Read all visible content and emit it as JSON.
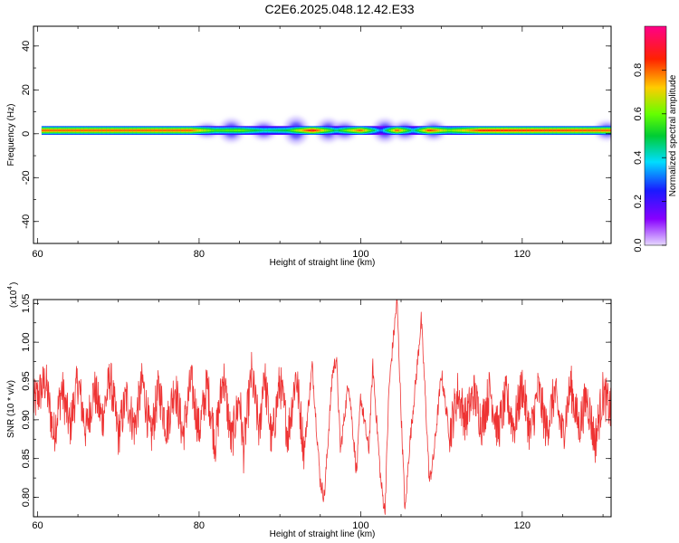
{
  "title": "C2E6.2025.048.12.42.E33",
  "chart_data": [
    {
      "type": "heatmap",
      "name": "spectrogram",
      "xlabel": "Height of straight line (km)",
      "ylabel": "Frequency (Hz)",
      "xlim": [
        59.5,
        131
      ],
      "ylim": [
        -50,
        49
      ],
      "xticks": [
        "60",
        "80",
        "100",
        "120"
      ],
      "yticks": [
        "40",
        "20",
        "0",
        "-20",
        "-40"
      ],
      "colorbar": {
        "label": "Normalized spectral amplitude",
        "range": [
          0,
          1
        ],
        "ticks": [
          "0.0",
          "0.2",
          "0.4",
          "0.6",
          "0.8"
        ],
        "colors": [
          "#e6d9ff",
          "#8800ff",
          "#1a1aff",
          "#00ddff",
          "#00cc33",
          "#66ff00",
          "#ffcc00",
          "#ff2200",
          "#ff0088"
        ]
      },
      "band": {
        "center_freq_hz": 1.5,
        "half_width_hz": 2,
        "amplitude_by_height": [
          {
            "x": 60.5,
            "amp": 0.8
          },
          {
            "x": 79,
            "amp": 0.8
          },
          {
            "x": 82,
            "amp": 0.55
          },
          {
            "x": 85,
            "amp": 0.6
          },
          {
            "x": 88,
            "amp": 0.45
          },
          {
            "x": 91,
            "amp": 0.5
          },
          {
            "x": 94,
            "amp": 0.9
          },
          {
            "x": 97,
            "amp": 0.45
          },
          {
            "x": 100,
            "amp": 0.82
          },
          {
            "x": 102.5,
            "amp": 0.3
          },
          {
            "x": 104.5,
            "amp": 0.82
          },
          {
            "x": 106.5,
            "amp": 0.4
          },
          {
            "x": 108.5,
            "amp": 0.85
          },
          {
            "x": 111,
            "amp": 0.6
          },
          {
            "x": 115,
            "amp": 0.85
          },
          {
            "x": 131,
            "amp": 0.8
          }
        ],
        "spread_regions": [
          {
            "x": 81,
            "spread_hz": 3
          },
          {
            "x": 84,
            "spread_hz": 5
          },
          {
            "x": 88,
            "spread_hz": 4
          },
          {
            "x": 92,
            "spread_hz": 6
          },
          {
            "x": 96,
            "spread_hz": 5
          },
          {
            "x": 98,
            "spread_hz": 4
          },
          {
            "x": 103,
            "spread_hz": 5
          },
          {
            "x": 105.5,
            "spread_hz": 4
          },
          {
            "x": 109,
            "spread_hz": 4
          },
          {
            "x": 130.5,
            "spread_hz": 4
          }
        ]
      }
    },
    {
      "type": "line",
      "name": "snr",
      "xlabel": "Height of straight line (km)",
      "ylabel": "SNR (10 * v/v)",
      "scale_label": "(x10",
      "scale_exponent": "4",
      "xlim": [
        59.5,
        131
      ],
      "ylim": [
        0.775,
        1.055
      ],
      "xticks": [
        "60",
        "80",
        "100",
        "120"
      ],
      "yticks": [
        "0.80",
        "0.85",
        "0.90",
        "0.95",
        "1.00",
        "1.05"
      ],
      "color": "#ee3333",
      "series": [
        {
          "values": [
            {
              "x": 59.5,
              "y": 0.92
            },
            {
              "x": 61,
              "y": 0.95
            },
            {
              "x": 62,
              "y": 0.88
            },
            {
              "x": 63,
              "y": 0.94
            },
            {
              "x": 64,
              "y": 0.89
            },
            {
              "x": 65,
              "y": 0.95
            },
            {
              "x": 66,
              "y": 0.885
            },
            {
              "x": 67,
              "y": 0.94
            },
            {
              "x": 68,
              "y": 0.9
            },
            {
              "x": 69,
              "y": 0.955
            },
            {
              "x": 70,
              "y": 0.88
            },
            {
              "x": 71,
              "y": 0.93
            },
            {
              "x": 72,
              "y": 0.89
            },
            {
              "x": 73,
              "y": 0.95
            },
            {
              "x": 74,
              "y": 0.875
            },
            {
              "x": 75,
              "y": 0.94
            },
            {
              "x": 76,
              "y": 0.89
            },
            {
              "x": 77,
              "y": 0.945
            },
            {
              "x": 78,
              "y": 0.88
            },
            {
              "x": 79,
              "y": 0.95
            },
            {
              "x": 80,
              "y": 0.885
            },
            {
              "x": 81,
              "y": 0.945
            },
            {
              "x": 82,
              "y": 0.87
            },
            {
              "x": 83,
              "y": 0.96
            },
            {
              "x": 84,
              "y": 0.87
            },
            {
              "x": 85,
              "y": 0.93
            },
            {
              "x": 85.5,
              "y": 0.86
            },
            {
              "x": 86.5,
              "y": 0.96
            },
            {
              "x": 87.5,
              "y": 0.88
            },
            {
              "x": 88,
              "y": 0.965
            },
            {
              "x": 89,
              "y": 0.87
            },
            {
              "x": 90,
              "y": 0.95
            },
            {
              "x": 91,
              "y": 0.88
            },
            {
              "x": 92,
              "y": 0.96
            },
            {
              "x": 93,
              "y": 0.86
            },
            {
              "x": 94,
              "y": 0.97
            },
            {
              "x": 95,
              "y": 0.82
            },
            {
              "x": 95.5,
              "y": 0.8
            },
            {
              "x": 96.5,
              "y": 0.96
            },
            {
              "x": 97,
              "y": 0.98
            },
            {
              "x": 97.5,
              "y": 0.86
            },
            {
              "x": 98.5,
              "y": 0.95
            },
            {
              "x": 99.5,
              "y": 0.83
            },
            {
              "x": 100,
              "y": 0.93
            },
            {
              "x": 101,
              "y": 0.86
            },
            {
              "x": 101.5,
              "y": 0.97
            },
            {
              "x": 102.5,
              "y": 0.82
            },
            {
              "x": 103,
              "y": 0.78
            },
            {
              "x": 103.5,
              "y": 0.94
            },
            {
              "x": 104,
              "y": 1.0
            },
            {
              "x": 104.5,
              "y": 1.055
            },
            {
              "x": 105,
              "y": 0.91
            },
            {
              "x": 105.5,
              "y": 0.78
            },
            {
              "x": 106,
              "y": 0.86
            },
            {
              "x": 107,
              "y": 0.97
            },
            {
              "x": 107.5,
              "y": 1.03
            },
            {
              "x": 108,
              "y": 0.93
            },
            {
              "x": 108.5,
              "y": 0.82
            },
            {
              "x": 109,
              "y": 0.85
            },
            {
              "x": 110,
              "y": 0.96
            },
            {
              "x": 111,
              "y": 0.88
            },
            {
              "x": 112,
              "y": 0.935
            },
            {
              "x": 113,
              "y": 0.9
            },
            {
              "x": 114,
              "y": 0.935
            },
            {
              "x": 115,
              "y": 0.895
            },
            {
              "x": 116,
              "y": 0.94
            },
            {
              "x": 117,
              "y": 0.885
            },
            {
              "x": 118,
              "y": 0.93
            },
            {
              "x": 119,
              "y": 0.89
            },
            {
              "x": 120,
              "y": 0.945
            },
            {
              "x": 121,
              "y": 0.88
            },
            {
              "x": 122,
              "y": 0.94
            },
            {
              "x": 123,
              "y": 0.885
            },
            {
              "x": 124,
              "y": 0.935
            },
            {
              "x": 125,
              "y": 0.88
            },
            {
              "x": 126,
              "y": 0.945
            },
            {
              "x": 127,
              "y": 0.89
            },
            {
              "x": 128,
              "y": 0.93
            },
            {
              "x": 129,
              "y": 0.87
            },
            {
              "x": 130,
              "y": 0.935
            },
            {
              "x": 131,
              "y": 0.91
            }
          ]
        }
      ]
    }
  ]
}
